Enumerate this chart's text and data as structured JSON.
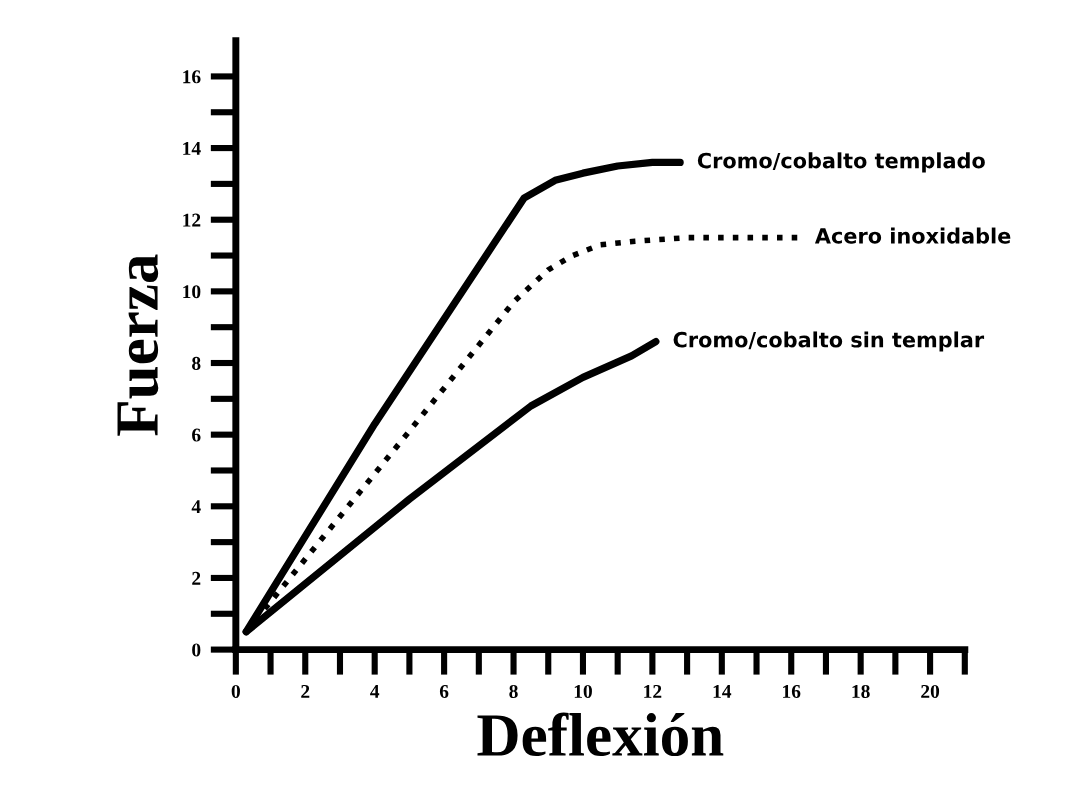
{
  "chart_data": {
    "type": "line",
    "xlabel": "Deflexión",
    "ylabel": "Fuerza",
    "xlim": [
      0,
      21
    ],
    "ylim": [
      0,
      17
    ],
    "xticks": [
      0,
      {
        "value": 1,
        "label": null
      },
      2,
      {
        "value": 3,
        "label": null
      },
      4,
      {
        "value": 5,
        "label": null
      },
      6,
      {
        "value": 7,
        "label": null
      },
      8,
      {
        "value": 9,
        "label": null
      },
      10,
      {
        "value": 11,
        "label": null
      },
      12,
      {
        "value": 13,
        "label": null
      },
      14,
      {
        "value": 15,
        "label": null
      },
      16,
      {
        "value": 17,
        "label": null
      },
      18,
      {
        "value": 19,
        "label": null
      },
      20,
      {
        "value": 21,
        "label": null
      }
    ],
    "yticks": [
      0,
      {
        "value": 1,
        "label": null
      },
      2,
      {
        "value": 3,
        "label": null
      },
      4,
      {
        "value": 5,
        "label": null
      },
      6,
      {
        "value": 7,
        "label": null
      },
      8,
      {
        "value": 9,
        "label": null
      },
      10,
      {
        "value": 11,
        "label": null
      },
      12,
      {
        "value": 13,
        "label": null
      },
      14,
      {
        "value": 15,
        "label": null
      },
      16
    ],
    "grid": false,
    "legend": false,
    "marker": "none",
    "series": [
      {
        "name": "Cromo/cobalto templado",
        "color": "#000000",
        "line_style": "solid",
        "x": [
          0.3,
          4,
          8.3,
          9.2,
          10,
          11,
          12,
          12.8
        ],
        "values": [
          0.5,
          6.3,
          12.6,
          13.1,
          13.3,
          13.5,
          13.6,
          13.6
        ]
      },
      {
        "name": "Acero inoxidable",
        "color": "#000000",
        "line_style": "dotted",
        "x": [
          0.3,
          5,
          8,
          9,
          9.7,
          10.5,
          11.5,
          13,
          16.2
        ],
        "values": [
          0.5,
          6.1,
          9.7,
          10.6,
          11.0,
          11.3,
          11.4,
          11.5,
          11.5
        ]
      },
      {
        "name": "Cromo/cobalto sin templar",
        "color": "#000000",
        "line_style": "solid",
        "x": [
          0.3,
          5,
          8.5,
          10,
          11.4,
          12.1
        ],
        "values": [
          0.5,
          4.2,
          6.8,
          7.6,
          8.2,
          8.6
        ]
      }
    ]
  }
}
